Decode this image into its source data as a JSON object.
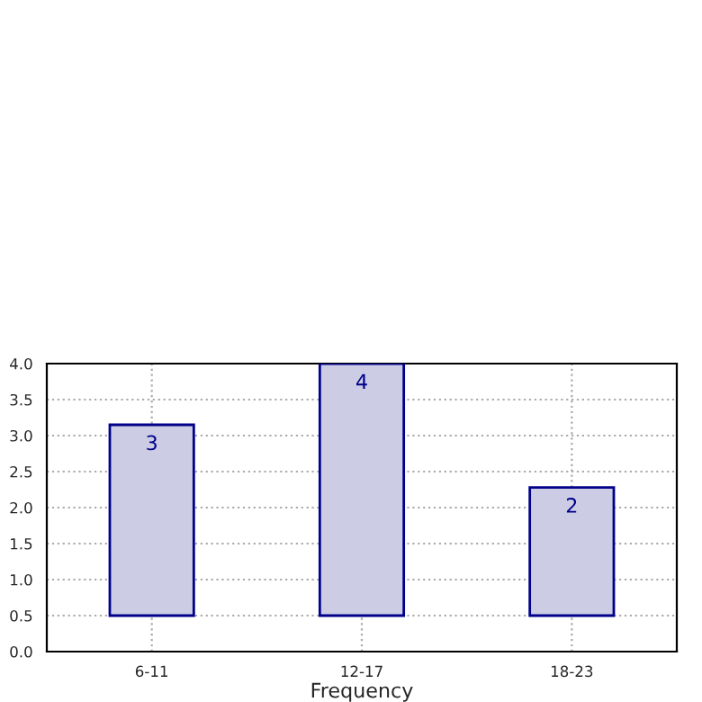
{
  "chart_data": {
    "type": "bar",
    "xlabel": "Frequency",
    "categories": [
      "6-11",
      "12-17",
      "18-23"
    ],
    "base": [
      0.5,
      0.5,
      0.5
    ],
    "values": [
      2.65,
      3.5,
      1.78
    ],
    "value_labels": [
      "3",
      "4",
      "2"
    ],
    "color": "#ccccE5",
    "ylim": [
      0,
      4
    ],
    "yticks": [
      {
        "value": 0,
        "label": "0.0"
      },
      {
        "value": 0.5,
        "label": "0.5"
      },
      {
        "value": 1,
        "label": "1.0"
      },
      {
        "value": 1.5,
        "label": "1.5"
      },
      {
        "value": 2,
        "label": "2.0"
      },
      {
        "value": 2.5,
        "label": "2.5"
      },
      {
        "value": 3,
        "label": "3.0"
      },
      {
        "value": 3.5,
        "label": "3.5"
      },
      {
        "value": 4,
        "label": "4.0"
      }
    ],
    "grid": true,
    "line_style": "dotted"
  }
}
